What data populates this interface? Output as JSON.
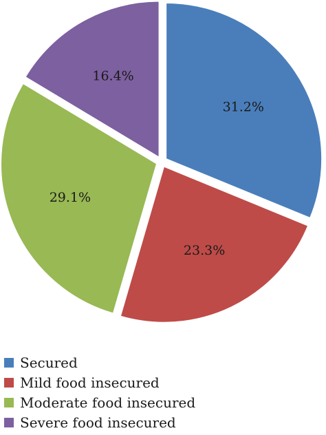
{
  "chart_data": {
    "type": "pie",
    "categories": [
      "Secured",
      "Mild food insecured",
      "Moderate food insecured",
      "Severe food insecured"
    ],
    "values": [
      31.2,
      23.3,
      29.1,
      16.4
    ],
    "data_labels": [
      "31.2%",
      "23.3%",
      "29.1%",
      "16.4%"
    ],
    "colors": [
      "#4a7ebb",
      "#be4b48",
      "#98b954",
      "#7d60a0"
    ],
    "exploded": true,
    "start_angle": "12 o'clock",
    "direction": "clockwise",
    "legend_position": "bottom-left"
  }
}
